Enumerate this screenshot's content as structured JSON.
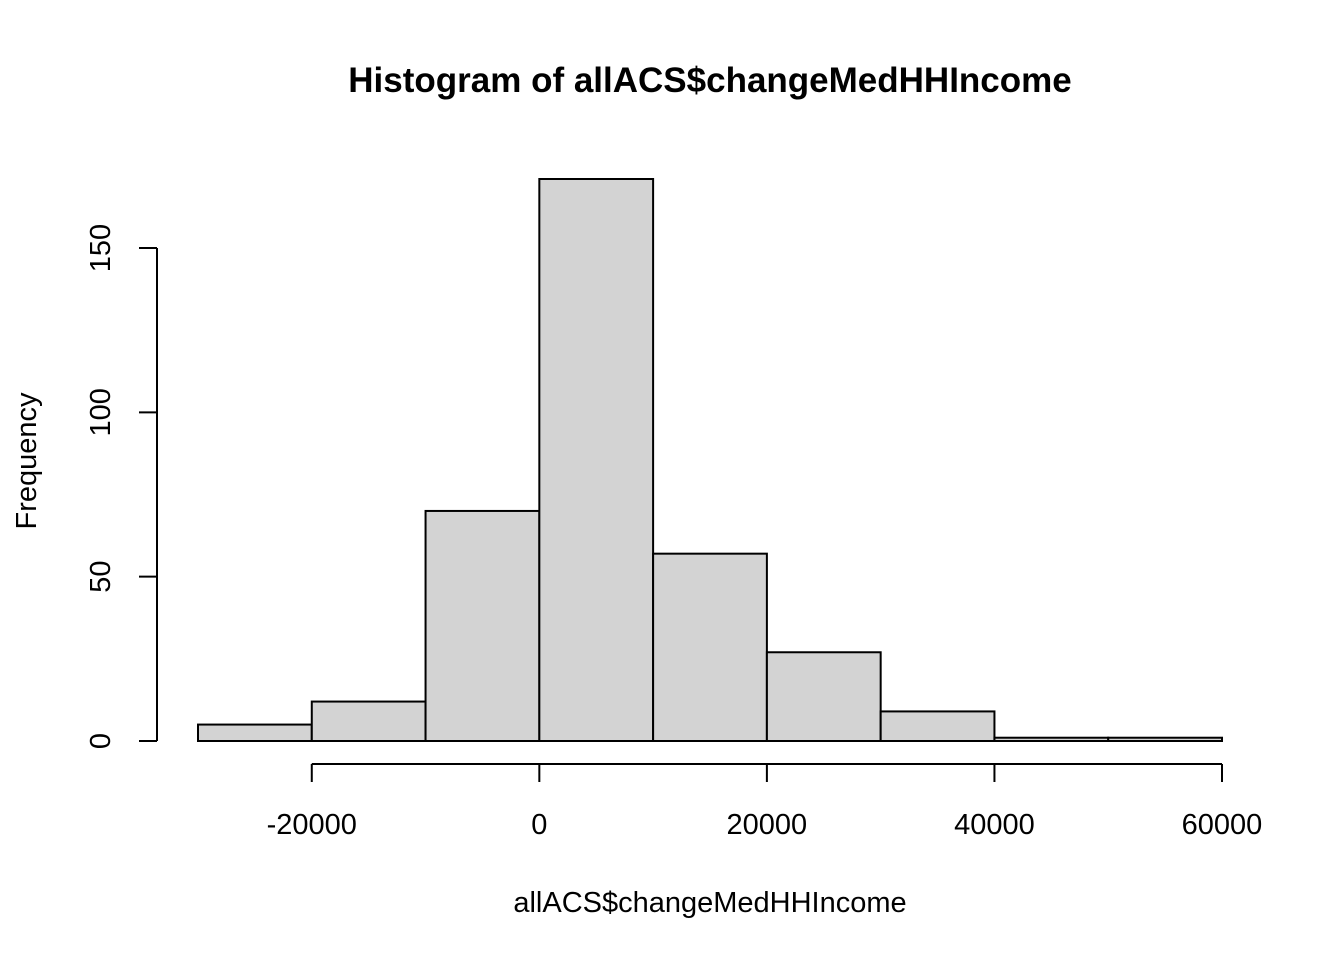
{
  "chart_data": {
    "type": "bar",
    "title": "Histogram of allACS$changeMedHHIncome",
    "xlabel": "allACS$changeMedHHIncome",
    "ylabel": "Frequency",
    "bins": [
      {
        "start": -30000,
        "end": -20000,
        "count": 5
      },
      {
        "start": -20000,
        "end": -10000,
        "count": 12
      },
      {
        "start": -10000,
        "end": 0,
        "count": 70
      },
      {
        "start": 0,
        "end": 10000,
        "count": 171
      },
      {
        "start": 10000,
        "end": 20000,
        "count": 57
      },
      {
        "start": 20000,
        "end": 30000,
        "count": 27
      },
      {
        "start": 30000,
        "end": 40000,
        "count": 9
      },
      {
        "start": 40000,
        "end": 50000,
        "count": 1
      },
      {
        "start": 50000,
        "end": 60000,
        "count": 1
      }
    ],
    "x_ticks": [
      -20000,
      0,
      20000,
      40000,
      60000
    ],
    "y_ticks": [
      0,
      50,
      100,
      150
    ],
    "xlim": [
      -30000,
      60000
    ],
    "ylim": [
      0,
      171
    ],
    "bar_color": "#d3d3d3",
    "edge_color": "#000000",
    "grid": false
  }
}
